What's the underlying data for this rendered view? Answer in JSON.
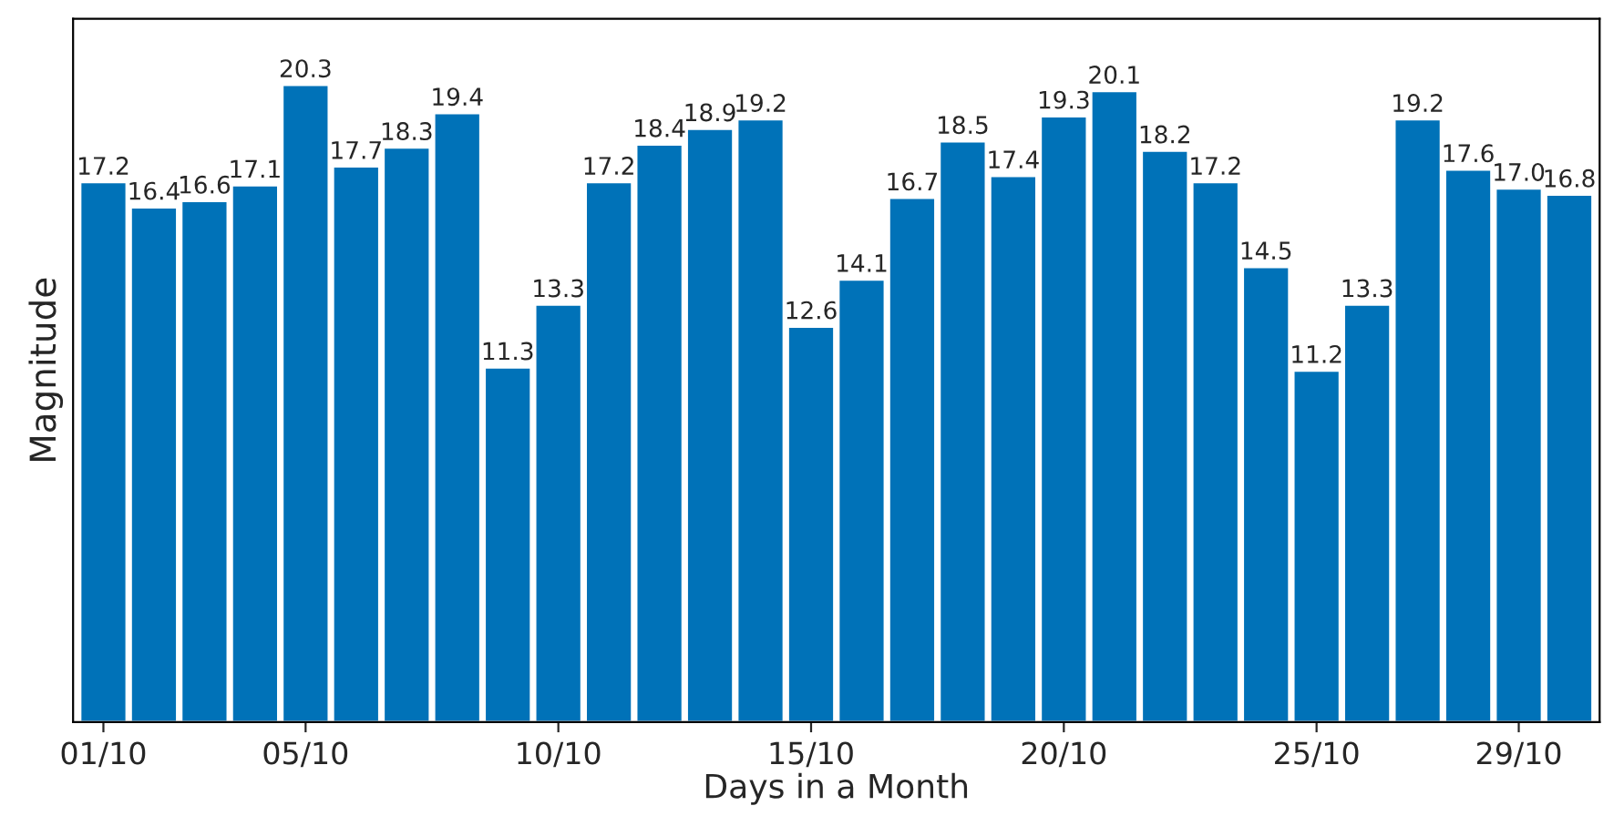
{
  "chart_data": {
    "type": "bar",
    "xlabel": "Days in a Month",
    "ylabel": "Magnitude",
    "categories": [
      "01/10",
      null,
      null,
      null,
      "05/10",
      null,
      null,
      null,
      null,
      "10/10",
      null,
      null,
      null,
      null,
      "15/10",
      null,
      null,
      null,
      null,
      "20/10",
      null,
      null,
      null,
      null,
      "25/10",
      null,
      null,
      null,
      "29/10",
      null
    ],
    "values": [
      17.2,
      16.4,
      16.6,
      17.1,
      20.3,
      17.7,
      18.3,
      19.4,
      11.3,
      13.3,
      17.2,
      18.4,
      18.9,
      19.2,
      12.6,
      14.1,
      16.7,
      18.5,
      17.4,
      19.3,
      20.1,
      18.2,
      17.2,
      14.5,
      11.2,
      13.3,
      19.2,
      17.6,
      17.0,
      16.8
    ],
    "value_labels": [
      "17.2",
      "16.4",
      "16.6",
      "17.1",
      "20.3",
      "17.7",
      "18.3",
      "19.4",
      "11.3",
      "13.3",
      "17.2",
      "18.4",
      "18.9",
      "19.2",
      "12.6",
      "14.1",
      "16.7",
      "18.5",
      "17.4",
      "19.3",
      "20.1",
      "18.2",
      "17.2",
      "14.5",
      "11.2",
      "13.3",
      "19.2",
      "17.6",
      "17.0",
      "16.8"
    ],
    "color": "#0072b8",
    "ylim": [
      0,
      22.4
    ],
    "tick_labels": "x",
    "grid": false,
    "legend": false
  }
}
